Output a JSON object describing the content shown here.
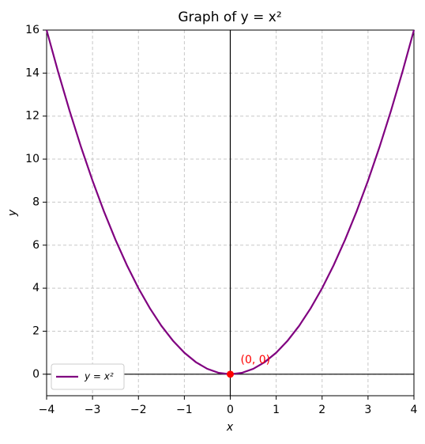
{
  "chart_data": {
    "type": "line",
    "title": "Graph of y = x²",
    "xlabel": "x",
    "ylabel": "y",
    "x": [
      -4,
      -3.75,
      -3.5,
      -3.25,
      -3,
      -2.75,
      -2.5,
      -2.25,
      -2,
      -1.75,
      -1.5,
      -1.25,
      -1,
      -0.75,
      -0.5,
      -0.25,
      0,
      0.25,
      0.5,
      0.75,
      1,
      1.25,
      1.5,
      1.75,
      2,
      2.25,
      2.5,
      2.75,
      3,
      3.25,
      3.5,
      3.75,
      4
    ],
    "series": [
      {
        "name": "y = x²",
        "color": "#800080",
        "values": [
          16,
          14.0625,
          12.25,
          10.5625,
          9,
          7.5625,
          6.25,
          5.0625,
          4,
          3.0625,
          2.25,
          1.5625,
          1,
          0.5625,
          0.25,
          0.0625,
          0,
          0.0625,
          0.25,
          0.5625,
          1,
          1.5625,
          2.25,
          3.0625,
          4,
          5.0625,
          6.25,
          7.5625,
          9,
          10.5625,
          12.25,
          14.0625,
          16
        ]
      }
    ],
    "highlight": {
      "x": 0,
      "y": 0,
      "label": "(0, 0)",
      "color": "#ff0000"
    },
    "axhline": 0,
    "axvline": 0,
    "xlim": [
      -4,
      4
    ],
    "ylim": [
      -1,
      16
    ],
    "xticks": [
      {
        "value": -4,
        "label": "−4"
      },
      {
        "value": -3,
        "label": "−3"
      },
      {
        "value": -2,
        "label": "−2"
      },
      {
        "value": -1,
        "label": "−1"
      },
      0,
      1,
      2,
      3,
      4
    ],
    "yticks": [
      0,
      2,
      4,
      6,
      8,
      10,
      12,
      14,
      16
    ],
    "grid": true,
    "legend": "lower left"
  }
}
